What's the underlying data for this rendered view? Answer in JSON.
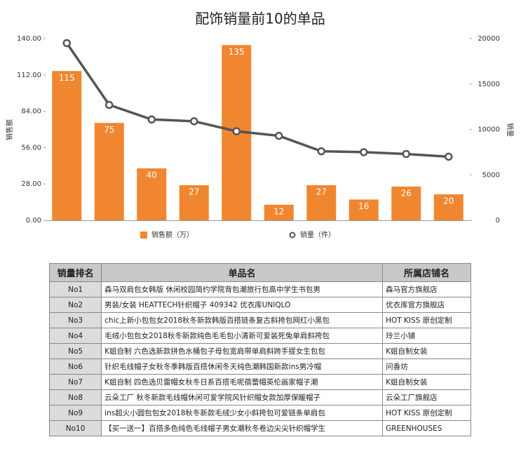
{
  "chart_data": {
    "type": "bar",
    "title": "配饰销量前10的单品",
    "ylabel": "销售额",
    "y2label": "销量",
    "series": [
      {
        "name": "销售额（万）",
        "type": "bar",
        "color": "#f0862f",
        "values": [
          115,
          75,
          40,
          27,
          135,
          12,
          27,
          16,
          26,
          20
        ]
      },
      {
        "name": "销量（件）",
        "type": "line",
        "axis": "y2",
        "color": "#555555",
        "values": [
          19500,
          12700,
          11100,
          10900,
          9800,
          9300,
          7600,
          7500,
          7300,
          7000
        ]
      }
    ],
    "ylim": [
      0,
      140
    ],
    "yticks": [
      {
        "value": 0,
        "label": "0.00"
      },
      {
        "value": 28,
        "label": "28.00"
      },
      {
        "value": 56,
        "label": "56.00"
      },
      {
        "value": 84,
        "label": "84.00"
      },
      {
        "value": 112,
        "label": "112.00"
      },
      {
        "value": 140,
        "label": "140.00"
      }
    ],
    "y2lim": [
      0,
      20000
    ],
    "y2ticks": [
      0,
      5000,
      10000,
      15000,
      20000
    ],
    "grid": false,
    "legend": "bottom"
  },
  "table": {
    "header": [
      "销量排名",
      "单品名",
      "所属店铺名"
    ],
    "rows": [
      [
        "No1",
        "森马双肩包女韩版 休闲校园简约学院背包潮旅行包高中学生书包男",
        "森马官方旗舰店"
      ],
      [
        "No2",
        "男装/女装 HEATTECH针织帽子 409342 优衣库UNIQLO",
        "优衣库官方旗舰店"
      ],
      [
        "No3",
        "chic上新小包包女2018秋冬新款韩版百搭链条复古斜挎包网红小黑包",
        "HOT KISS 原创定制"
      ],
      [
        "No4",
        "毛绒小包包女2018秋冬新款纯色毛毛包小清新可爱装死兔单肩斜挎包",
        "玲兰小铺"
      ],
      [
        "No5",
        "K姐自制 六色选新款拼色水桶包子母包宽肩带单肩斜跨手提女生包包",
        "K姐自制女装"
      ],
      [
        "No6",
        "针织毛线帽子女秋冬季韩版百搭休闲冬天纯色潮韩国新款ins男冷帽",
        "问香坊"
      ],
      [
        "No7",
        "K姐自制 四色选贝雷帽女秋冬日系百搭毛呢蓓蕾帽英伦画家帽子潮",
        "K姐自制女装"
      ],
      [
        "No8",
        "云朵工厂 秋冬新款毛线帽休闲可爱学院风针织帽女款加厚保暖帽子",
        "云朵工厂旗舰店"
      ],
      [
        "No9",
        "ins超火小圆包包女2018秋冬新款毛绒少女小斜挎包可爱链条单肩包",
        "HOT KISS 原创定制"
      ],
      [
        "No10",
        "【买一送一】百搭多色纯色毛线帽子男女潮秋冬卷边尖尖针织帽学生",
        "GREENHOUSES"
      ]
    ]
  }
}
